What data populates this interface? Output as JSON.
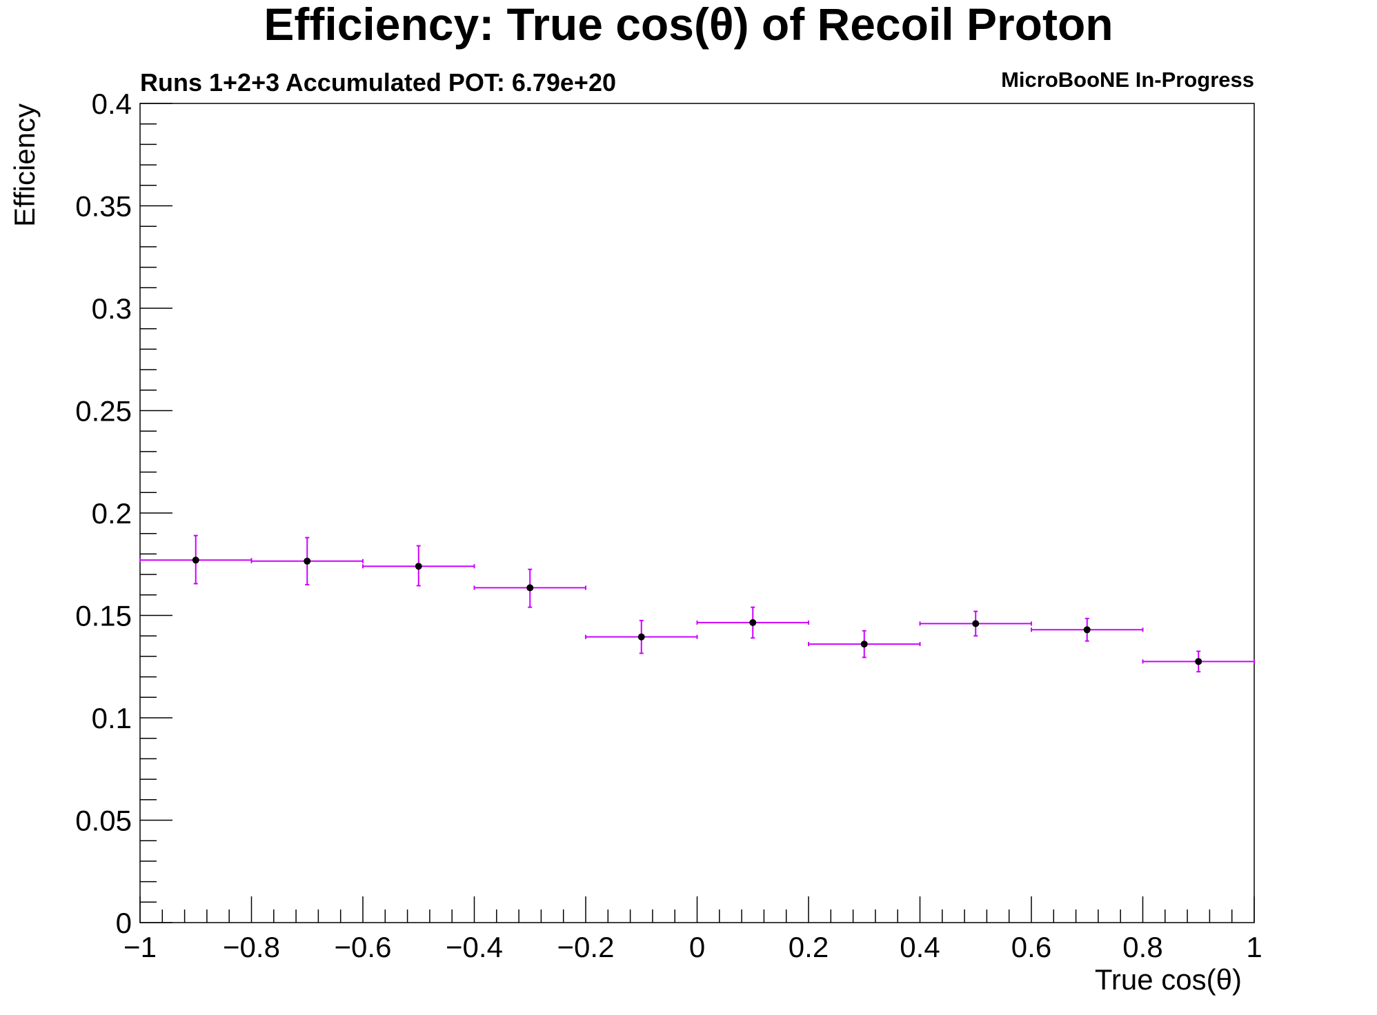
{
  "chart_data": {
    "type": "scatter",
    "title": "Efficiency: True cos(θ) of Recoil Proton",
    "subtitle_left": "Runs 1+2+3 Accumulated POT: 6.79e+20",
    "subtitle_right": "MicroBooNE In-Progress",
    "xlabel": "True cos(θ)",
    "ylabel": "Efficiency",
    "xlim": [
      -1,
      1
    ],
    "ylim": [
      0,
      0.4
    ],
    "x_ticks": [
      -1,
      -0.8,
      -0.6,
      -0.4,
      -0.2,
      0,
      0.2,
      0.4,
      0.6,
      0.8,
      1
    ],
    "x_tick_labels": [
      "−1",
      "−0.8",
      "−0.6",
      "−0.4",
      "−0.2",
      "0",
      "0.2",
      "0.4",
      "0.6",
      "0.8",
      "1"
    ],
    "y_ticks": [
      0,
      0.05,
      0.1,
      0.15,
      0.2,
      0.25,
      0.3,
      0.35,
      0.4
    ],
    "y_tick_labels": [
      "0",
      "0.05",
      "0.1",
      "0.15",
      "0.2",
      "0.25",
      "0.3",
      "0.35",
      "0.4"
    ],
    "grid": false,
    "colors": {
      "error_bars": "#cc00ff",
      "markers": "#000000",
      "frame": "#000000"
    },
    "points": [
      {
        "x": -0.9,
        "y": 0.177,
        "xerr": 0.1,
        "yerr_low": 0.0115,
        "yerr_high": 0.012
      },
      {
        "x": -0.7,
        "y": 0.1765,
        "xerr": 0.1,
        "yerr_low": 0.0115,
        "yerr_high": 0.0115
      },
      {
        "x": -0.5,
        "y": 0.174,
        "xerr": 0.1,
        "yerr_low": 0.0095,
        "yerr_high": 0.01
      },
      {
        "x": -0.3,
        "y": 0.1635,
        "xerr": 0.1,
        "yerr_low": 0.0095,
        "yerr_high": 0.009
      },
      {
        "x": -0.1,
        "y": 0.1395,
        "xerr": 0.1,
        "yerr_low": 0.008,
        "yerr_high": 0.008
      },
      {
        "x": 0.1,
        "y": 0.1465,
        "xerr": 0.1,
        "yerr_low": 0.0075,
        "yerr_high": 0.0075
      },
      {
        "x": 0.3,
        "y": 0.136,
        "xerr": 0.1,
        "yerr_low": 0.0065,
        "yerr_high": 0.0065
      },
      {
        "x": 0.5,
        "y": 0.146,
        "xerr": 0.1,
        "yerr_low": 0.006,
        "yerr_high": 0.006
      },
      {
        "x": 0.7,
        "y": 0.143,
        "xerr": 0.1,
        "yerr_low": 0.0055,
        "yerr_high": 0.0055
      },
      {
        "x": 0.9,
        "y": 0.1275,
        "xerr": 0.1,
        "yerr_low": 0.005,
        "yerr_high": 0.005
      }
    ]
  }
}
